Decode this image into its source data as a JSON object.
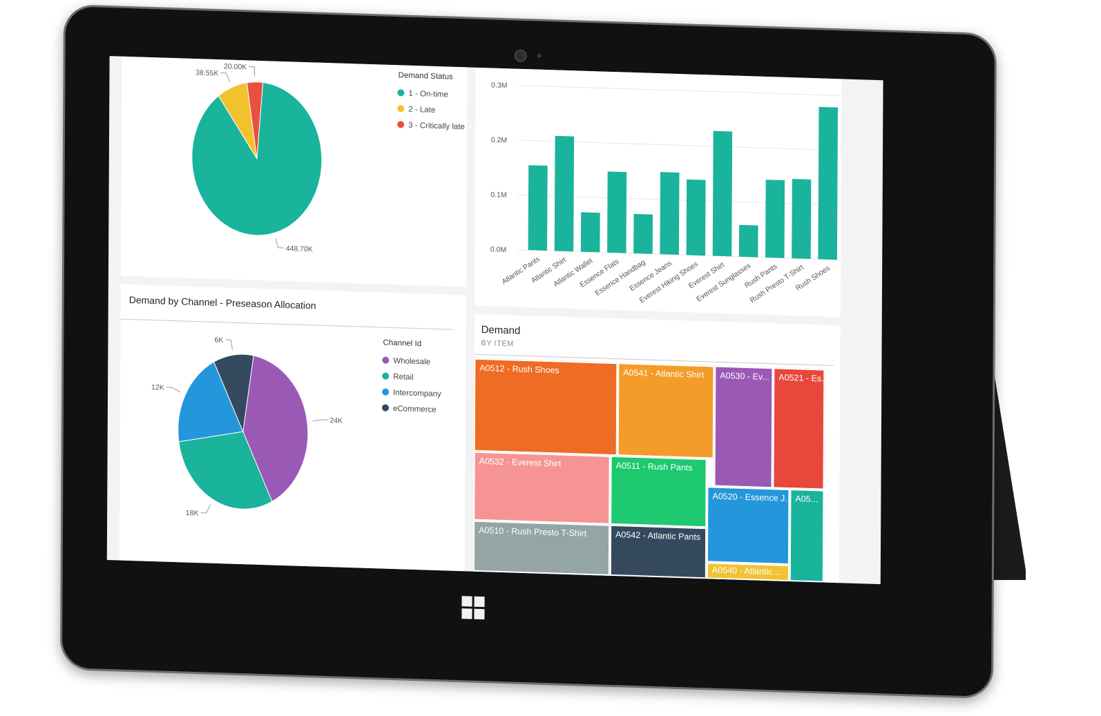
{
  "colors": {
    "teal": "#1ab39c",
    "yellow": "#f2c12e",
    "red": "#e8503f",
    "purple": "#9b59b6",
    "blue": "#2496db",
    "navy": "#34495e"
  },
  "charts": {
    "demand_by_channel": {
      "title": "Demand by Channel - Preseason Allocation"
    },
    "demand_by_item": {
      "title": "Demand",
      "subtitle": "BY ITEM"
    }
  },
  "chart_data": [
    {
      "type": "pie",
      "legend_title": "Demand Status",
      "legend": "right",
      "slices": [
        {
          "name": "1 - On-time",
          "value": 448.7,
          "label": "448.70K",
          "color": "#1ab39c"
        },
        {
          "name": "2 - Late",
          "value": 38.55,
          "label": "38.55K",
          "color": "#f2c12e"
        },
        {
          "name": "3 - Critically late",
          "value": 20.0,
          "label": "20.00K",
          "color": "#e8503f"
        }
      ]
    },
    {
      "type": "bar",
      "categories": [
        "Atlantic Pants",
        "Atlantic Shirt",
        "Atlantic Wallet",
        "Essence Flats",
        "Essence Handbag",
        "Essence Jeans",
        "Everest Hiking Shoes",
        "Everest Shirt",
        "Everest Sunglasses",
        "Rush Pants",
        "Rush Presto T-Shirt",
        "Rush Shoes"
      ],
      "values": [
        0.155,
        0.21,
        0.072,
        0.148,
        0.072,
        0.15,
        0.138,
        0.228,
        0.058,
        0.142,
        0.145,
        0.278
      ],
      "ylim": [
        0,
        0.3
      ],
      "yticks": [
        "0.0M",
        "0.1M",
        "0.2M",
        "0.3M"
      ],
      "grid": true,
      "color": "#1ab39c"
    },
    {
      "type": "pie",
      "title": "Demand by Channel - Preseason Allocation",
      "legend_title": "Channel Id",
      "legend": "right",
      "slices": [
        {
          "name": "Wholesale",
          "value": 24,
          "label": "24K",
          "color": "#9b59b6"
        },
        {
          "name": "Retail",
          "value": 18,
          "label": "18K",
          "color": "#1ab39c"
        },
        {
          "name": "Intercompany",
          "value": 12,
          "label": "12K",
          "color": "#2496db"
        },
        {
          "name": "eCommerce",
          "value": 6,
          "label": "6K",
          "color": "#34495e"
        }
      ]
    },
    {
      "type": "treemap",
      "title": "Demand",
      "subtitle": "BY ITEM",
      "items": [
        {
          "label": "A0512 - Rush Shoes",
          "color": "#ee6c23"
        },
        {
          "label": "A0532 - Everest Shirt",
          "color": "#f69494"
        },
        {
          "label": "A0510 - Rush Presto T-Shirt",
          "color": "#95a5a6"
        },
        {
          "label": "A0541 - Atlantic Shirt",
          "color": "#f39c2a"
        },
        {
          "label": "A0511 - Rush Pants",
          "color": "#1ec96f"
        },
        {
          "label": "A0542 - Atlantic Pants",
          "color": "#34495e"
        },
        {
          "label": "A0530 - Ev...",
          "color": "#9b59b6"
        },
        {
          "label": "A0521 - Es...",
          "color": "#e8473c"
        },
        {
          "label": "A0520 - Essence J...",
          "color": "#2496db"
        },
        {
          "label": "A0540 - Atlantic ...",
          "color": "#f1c232"
        },
        {
          "label": "A05...",
          "color": "#1ab39c"
        }
      ]
    }
  ]
}
